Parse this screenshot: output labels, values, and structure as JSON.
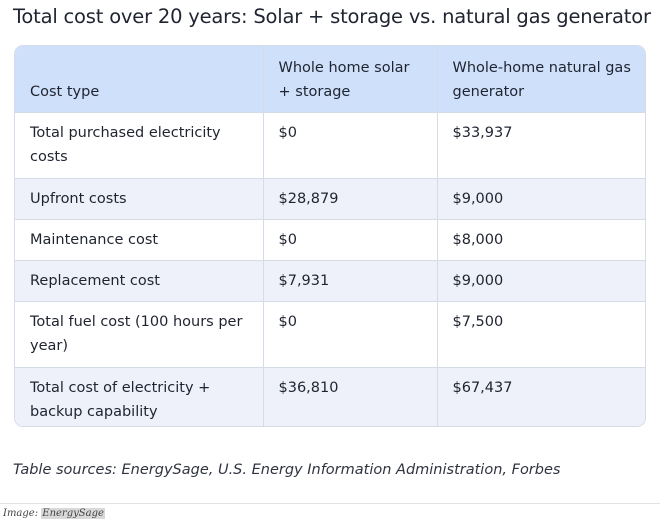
{
  "title": "Total cost over 20 years: Solar + storage vs. natural gas generator",
  "table": {
    "headers": [
      "Cost type",
      "Whole home solar + storage",
      "Whole-home natural gas generator"
    ],
    "rows": [
      [
        "Total purchased electricity costs",
        "$0",
        "$33,937"
      ],
      [
        "Upfront costs",
        "$28,879",
        "$9,000"
      ],
      [
        "Maintenance cost",
        "$0",
        "$8,000"
      ],
      [
        "Replacement cost",
        "$7,931",
        "$9,000"
      ],
      [
        "Total fuel cost (100 hours per year)",
        "$0",
        "$7,500"
      ],
      [
        "Total cost of electricity + backup capability",
        "$36,810",
        "$67,437"
      ]
    ]
  },
  "sources": "Table sources: EnergySage, U.S. Energy Information Administration, Forbes",
  "caption": {
    "label": "Image: ",
    "credit": "EnergySage"
  }
}
